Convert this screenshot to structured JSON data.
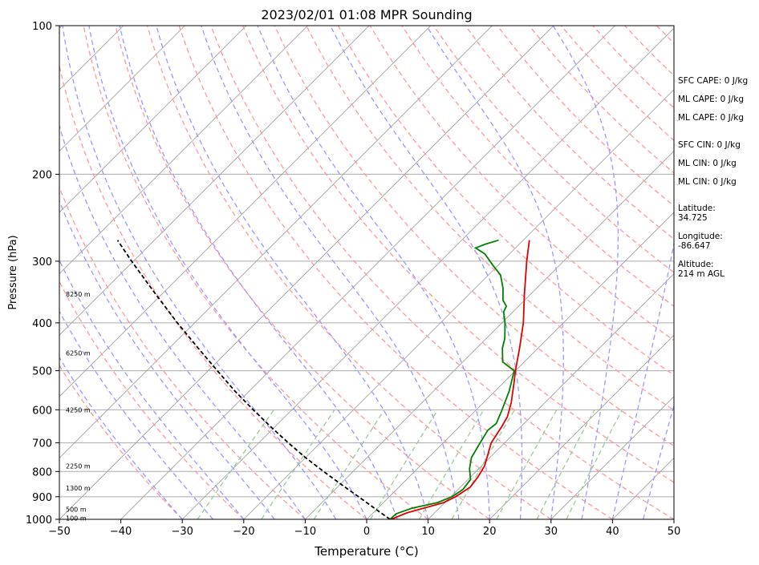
{
  "chart_data": {
    "type": "line",
    "title": "2023/02/01 01:08 MPR Sounding",
    "xlabel": "Temperature (°C)",
    "ylabel": "Pressure (hPa)",
    "xlim": [
      -50,
      50
    ],
    "ylim": [
      1000,
      100
    ],
    "y_scale": "log",
    "skew": "isotherms skewed 45° to the right",
    "x_ticks": [
      "−50",
      "−40",
      "−30",
      "−20",
      "−10",
      "0",
      "10",
      "20",
      "30",
      "40",
      "50"
    ],
    "y_ticks": [
      100,
      200,
      300,
      400,
      500,
      600,
      700,
      800,
      900,
      1000
    ],
    "grid": true,
    "series": [
      {
        "key": "temperature",
        "color": "#e00000",
        "points": [
          {
            "p": 1000,
            "t": 4.0
          },
          {
            "p": 970,
            "t": 5.5
          },
          {
            "p": 925,
            "t": 9.8
          },
          {
            "p": 900,
            "t": 10.8
          },
          {
            "p": 860,
            "t": 11.6
          },
          {
            "p": 820,
            "t": 11.2
          },
          {
            "p": 780,
            "t": 10.5
          },
          {
            "p": 740,
            "t": 9.2
          },
          {
            "p": 700,
            "t": 7.8
          },
          {
            "p": 650,
            "t": 6.9
          },
          {
            "p": 620,
            "t": 6.2
          },
          {
            "p": 580,
            "t": 4.5
          },
          {
            "p": 530,
            "t": 1.8
          },
          {
            "p": 500,
            "t": 0.0
          },
          {
            "p": 450,
            "t": -3.0
          },
          {
            "p": 400,
            "t": -6.5
          },
          {
            "p": 350,
            "t": -11.0
          },
          {
            "p": 300,
            "t": -16.0
          },
          {
            "p": 272,
            "t": -19.0
          }
        ]
      },
      {
        "key": "dewpoint",
        "color": "#008000",
        "points": [
          {
            "p": 1000,
            "t": 3.8
          },
          {
            "p": 975,
            "t": 3.9
          },
          {
            "p": 950,
            "t": 5.5
          },
          {
            "p": 925,
            "t": 8.8
          },
          {
            "p": 900,
            "t": 10.2
          },
          {
            "p": 870,
            "t": 10.8
          },
          {
            "p": 830,
            "t": 10.4
          },
          {
            "p": 790,
            "t": 8.5
          },
          {
            "p": 750,
            "t": 7.0
          },
          {
            "p": 700,
            "t": 6.0
          },
          {
            "p": 660,
            "t": 5.2
          },
          {
            "p": 640,
            "t": 5.5
          },
          {
            "p": 600,
            "t": 4.2
          },
          {
            "p": 550,
            "t": 2.3
          },
          {
            "p": 500,
            "t": -0.2
          },
          {
            "p": 480,
            "t": -3.5
          },
          {
            "p": 450,
            "t": -5.8
          },
          {
            "p": 430,
            "t": -7.0
          },
          {
            "p": 400,
            "t": -9.5
          },
          {
            "p": 380,
            "t": -11.5
          },
          {
            "p": 370,
            "t": -12.0
          },
          {
            "p": 360,
            "t": -13.5
          },
          {
            "p": 340,
            "t": -15.5
          },
          {
            "p": 320,
            "t": -18.0
          },
          {
            "p": 305,
            "t": -21.0
          },
          {
            "p": 290,
            "t": -24.0
          },
          {
            "p": 282,
            "t": -26.5
          },
          {
            "p": 277,
            "t": -25.5
          },
          {
            "p": 272,
            "t": -24.0
          }
        ]
      },
      {
        "key": "parcel",
        "color": "#000000",
        "dashed": true,
        "points": [
          {
            "p": 1000,
            "t": 3.8
          },
          {
            "p": 950,
            "t": -0.5
          },
          {
            "p": 900,
            "t": -5.0
          },
          {
            "p": 850,
            "t": -9.8
          },
          {
            "p": 800,
            "t": -14.8
          },
          {
            "p": 750,
            "t": -20.0
          },
          {
            "p": 700,
            "t": -25.2
          },
          {
            "p": 650,
            "t": -30.6
          },
          {
            "p": 600,
            "t": -36.3
          },
          {
            "p": 550,
            "t": -42.3
          },
          {
            "p": 500,
            "t": -48.5
          },
          {
            "p": 450,
            "t": -55.3
          },
          {
            "p": 400,
            "t": -62.8
          },
          {
            "p": 350,
            "t": -71.0
          },
          {
            "p": 300,
            "t": -80.3
          },
          {
            "p": 272,
            "t": -86.0
          }
        ]
      }
    ],
    "height_labels": [
      {
        "p": 350,
        "text": "8250 m"
      },
      {
        "p": 460,
        "text": "6250 m"
      },
      {
        "p": 600,
        "text": "4250 m"
      },
      {
        "p": 780,
        "text": "2250 m"
      },
      {
        "p": 865,
        "text": "1300 m"
      },
      {
        "p": 955,
        "text": "500 m"
      },
      {
        "p": 995,
        "text": "100 m"
      }
    ],
    "stats": [
      "SFC CAPE: 0 J/kg",
      "ML CAPE: 0 J/kg",
      "ML CAPE: 0 J/kg",
      "SFC CIN: 0 J/kg",
      "ML CIN: 0 J/kg",
      "ML CIN: 0 J/kg",
      "Latitude:",
      "34.725",
      "Longitude:",
      "-86.647",
      "Altitude:",
      "214 m AGL"
    ],
    "colors": {
      "dry_adiabat": "#ff9999",
      "moist_adiabat": "#9999ff",
      "mixing_ratio": "#99cc99",
      "isotherm": "#999999"
    }
  }
}
